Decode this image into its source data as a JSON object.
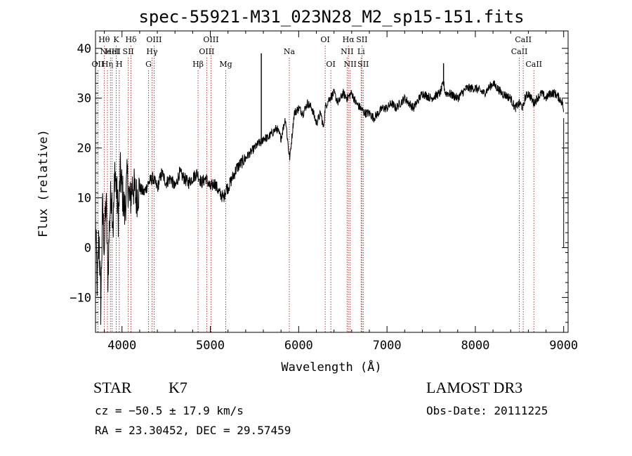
{
  "chart_data": {
    "type": "line",
    "title": "spec-55921-M31_023N28_M2_sp15-151.fits",
    "xlabel": "Wavelength (Å)",
    "ylabel": "Flux (relative)",
    "xlim": [
      3700,
      9050
    ],
    "ylim": [
      -17,
      43.5
    ],
    "xticks": [
      4000,
      5000,
      6000,
      7000,
      8000,
      9000
    ],
    "yticks": [
      -10,
      0,
      10,
      20,
      30,
      40
    ],
    "series": [
      {
        "name": "flux",
        "x": [
          3700,
          3720,
          3740,
          3760,
          3780,
          3800,
          3820,
          3840,
          3860,
          3880,
          3900,
          3920,
          3940,
          3960,
          3980,
          4000,
          4030,
          4060,
          4090,
          4120,
          4160,
          4200,
          4250,
          4300,
          4350,
          4400,
          4450,
          4500,
          4550,
          4600,
          4650,
          4700,
          4750,
          4800,
          4850,
          4900,
          4950,
          5000,
          5050,
          5100,
          5150,
          5180,
          5200,
          5250,
          5300,
          5350,
          5400,
          5450,
          5500,
          5550,
          5580,
          5600,
          5650,
          5700,
          5750,
          5800,
          5850,
          5890,
          5900,
          5950,
          6000,
          6050,
          6100,
          6150,
          6200,
          6250,
          6280,
          6300,
          6320,
          6350,
          6400,
          6450,
          6500,
          6550,
          6600,
          6650,
          6700,
          6750,
          6800,
          6850,
          6900,
          6950,
          7000,
          7050,
          7100,
          7150,
          7200,
          7300,
          7400,
          7500,
          7600,
          7640,
          7660,
          7700,
          7800,
          7900,
          8000,
          8100,
          8200,
          8300,
          8400,
          8450,
          8500,
          8542,
          8560,
          8600,
          8662,
          8700,
          8750,
          8800,
          8850,
          8900,
          8950,
          8990,
          9000
        ],
        "y": [
          5,
          -8,
          3,
          -12,
          8,
          0,
          10,
          -6,
          6,
          12,
          4,
          16,
          11,
          6,
          15,
          12,
          7,
          14,
          9,
          13,
          10,
          12,
          11,
          13,
          14,
          12,
          15,
          13,
          14,
          12,
          15,
          14,
          13,
          14,
          15,
          13,
          14,
          12,
          13,
          11,
          10,
          12,
          12,
          14,
          16,
          17,
          18,
          19,
          20,
          21,
          21,
          22,
          22,
          23,
          24,
          22,
          26,
          19,
          18,
          27,
          28,
          27,
          29,
          28,
          25,
          27,
          24,
          28,
          29,
          30,
          31,
          29,
          31,
          30,
          31,
          29,
          28,
          27,
          27,
          26,
          27,
          28,
          28,
          29,
          28,
          29,
          30,
          28,
          31,
          30,
          31,
          33,
          31,
          31,
          30,
          32,
          32,
          31,
          33,
          31,
          30,
          28,
          29,
          28,
          30,
          31,
          29,
          30,
          31,
          30,
          31,
          31,
          30,
          29,
          26
        ]
      }
    ],
    "spikes": [
      {
        "x": 5577,
        "y": 39
      },
      {
        "x": 7640,
        "y": 37
      }
    ],
    "line_marks": [
      {
        "x": 3727,
        "label": "OII",
        "row": 3
      },
      {
        "x": 3798,
        "label": "Hθ",
        "row": 1
      },
      {
        "x": 3835,
        "label": "Hη",
        "row": 3
      },
      {
        "x": 3869,
        "label": "NeIII",
        "row": 2
      },
      {
        "x": 3889,
        "label": "HeI",
        "row": 2
      },
      {
        "x": 3934,
        "label": "K",
        "row": 1
      },
      {
        "x": 3969,
        "label": "H",
        "row": 3
      },
      {
        "x": 4071,
        "label": "SII",
        "row": 2
      },
      {
        "x": 4102,
        "label": "Hδ",
        "row": 1
      },
      {
        "x": 4300,
        "label": "G",
        "row": 3
      },
      {
        "x": 4340,
        "label": "Hγ",
        "row": 2
      },
      {
        "x": 4363,
        "label": "OIII",
        "row": 1
      },
      {
        "x": 4861,
        "label": "Hβ",
        "row": 3
      },
      {
        "x": 4959,
        "label": "OIII",
        "row": 2
      },
      {
        "x": 5007,
        "label": "OIII",
        "row": 1
      },
      {
        "x": 5175,
        "label": "Mg",
        "row": 3
      },
      {
        "x": 5894,
        "label": "Na",
        "row": 2
      },
      {
        "x": 6300,
        "label": "OI",
        "row": 1
      },
      {
        "x": 6364,
        "label": "OI",
        "row": 3
      },
      {
        "x": 6548,
        "label": "NII",
        "row": 2
      },
      {
        "x": 6563,
        "label": "Hα",
        "row": 1
      },
      {
        "x": 6583,
        "label": "NII",
        "row": 3
      },
      {
        "x": 6707,
        "label": "Li",
        "row": 2
      },
      {
        "x": 6716,
        "label": "SII",
        "row": 1
      },
      {
        "x": 6731,
        "label": "SII",
        "row": 3
      },
      {
        "x": 8498,
        "label": "CaII",
        "row": 2
      },
      {
        "x": 8542,
        "label": "CaII",
        "row": 1
      },
      {
        "x": 8662,
        "label": "CaII",
        "row": 3
      }
    ]
  },
  "info": {
    "class_label": "STAR",
    "subclass": "K7",
    "cz": "cz = −50.5 ± 17.9 km/s",
    "radec": "RA =  23.30452, DEC =  29.57459",
    "survey": "LAMOST DR3",
    "obs_date": "Obs-Date: 20111225"
  }
}
